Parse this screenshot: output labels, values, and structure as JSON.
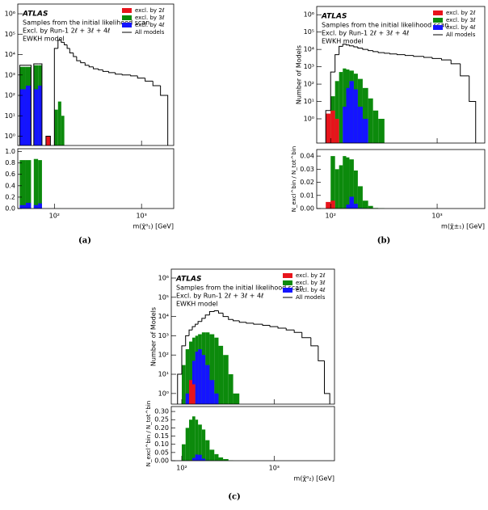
{
  "chart_data": [
    {
      "type": "histogram",
      "caption": "(a)",
      "atlas": "ATLAS",
      "annotations": [
        "Samples from the initial likelihood scan",
        "Excl. by Run-1 2ℓ + 3ℓ + 4ℓ",
        "EWKH model"
      ],
      "xlabel": "m(χ̃⁰₁) [GeV]",
      "xlog": true,
      "ylog": true,
      "xlim": [
        38,
        2340
      ],
      "ylim": [
        0.35,
        3000000
      ],
      "xticks": [
        {
          "value": 100,
          "label": "10²"
        },
        {
          "value": 1000,
          "label": "10³"
        }
      ],
      "yticks": [
        {
          "value": 1,
          "label": "10⁰"
        },
        {
          "value": 10,
          "label": "10¹"
        },
        {
          "value": 100,
          "label": "10²"
        },
        {
          "value": 1000,
          "label": "10³"
        },
        {
          "value": 10000,
          "label": "10⁴"
        },
        {
          "value": 100000,
          "label": "10⁵"
        },
        {
          "value": 1000000,
          "label": "10⁶"
        }
      ],
      "bins": [
        40,
        47,
        54,
        58,
        65,
        72,
        80,
        90,
        100,
        110,
        120,
        130,
        140,
        150,
        165,
        180,
        200,
        225,
        250,
        280,
        320,
        360,
        420,
        500,
        600,
        750,
        900,
        1100,
        1350,
        1650,
        2000,
        2300
      ],
      "series": [
        {
          "name": "excl. by 2ℓ",
          "color": "#e8141b",
          "values": [
            null,
            null,
            null,
            null,
            null,
            null,
            1,
            null,
            null,
            null,
            null,
            null,
            null,
            null,
            null,
            null,
            null,
            null,
            null,
            null,
            null,
            null,
            null,
            null,
            null,
            null,
            null,
            null,
            null,
            null,
            null
          ]
        },
        {
          "name": "excl. by 3ℓ",
          "color": "#0c8a0c",
          "values": [
            2500,
            2500,
            null,
            3000,
            3000,
            null,
            null,
            null,
            20,
            50,
            10,
            null,
            null,
            null,
            null,
            null,
            null,
            null,
            null,
            null,
            null,
            null,
            null,
            null,
            null,
            null,
            null,
            null,
            null,
            null,
            null
          ]
        },
        {
          "name": "excl. by 4ℓ",
          "color": "#1414ff",
          "values": [
            200,
            300,
            null,
            200,
            300,
            null,
            null,
            null,
            null,
            null,
            null,
            null,
            null,
            null,
            null,
            null,
            null,
            null,
            null,
            null,
            null,
            null,
            null,
            null,
            null,
            null,
            null,
            null,
            null,
            null,
            null
          ]
        },
        {
          "name": "All models",
          "color": "#000000",
          "values": [
            3000,
            3000,
            null,
            3500,
            3500,
            null,
            1,
            null,
            20000,
            50000,
            40000,
            30000,
            20000,
            12000,
            8000,
            5000,
            4000,
            3000,
            2500,
            2000,
            1800,
            1500,
            1300,
            1100,
            1000,
            900,
            700,
            500,
            300,
            100,
            null
          ]
        }
      ],
      "ratio": {
        "ylim": [
          0,
          1.05
        ],
        "yticks": [
          {
            "value": 0,
            "label": "0.0"
          },
          {
            "value": 0.2,
            "label": "0.2"
          },
          {
            "value": 0.4,
            "label": "0.4"
          },
          {
            "value": 0.6,
            "label": "0.6"
          },
          {
            "value": 0.8,
            "label": "0.8"
          },
          {
            "value": 1,
            "label": "1.0"
          }
        ],
        "series": [
          {
            "color": "#0c8a0c",
            "values": [
              0.85,
              0.85,
              null,
              0.87,
              0.85,
              null,
              null,
              null,
              0.001,
              0.001,
              0.0003,
              null,
              null,
              null,
              null,
              null,
              null,
              null,
              null,
              null,
              null,
              null,
              null,
              null,
              null,
              null,
              null,
              null,
              null,
              null,
              null
            ]
          },
          {
            "color": "#1414ff",
            "values": [
              0.06,
              0.1,
              null,
              0.06,
              0.09,
              null,
              null,
              null,
              null,
              null,
              null,
              null,
              null,
              null,
              null,
              null,
              null,
              null,
              null,
              null,
              null,
              null,
              null,
              null,
              null,
              null,
              null,
              null,
              null,
              null,
              null
            ]
          }
        ]
      }
    },
    {
      "type": "histogram",
      "caption": "(b)",
      "atlas": "ATLAS",
      "annotations": [
        "Samples from the initial likelihood scan",
        "Excl. by Run-1 2ℓ + 3ℓ + 4ℓ",
        "EWKH model"
      ],
      "ylabel": "Number of Models",
      "xlabel": "m(χ̃±₁) [GeV]",
      "xlog": true,
      "ylog": true,
      "xlim": [
        74,
        2800
      ],
      "ylim": [
        0.04,
        3000000
      ],
      "xticks": [
        {
          "value": 100,
          "label": "10²"
        },
        {
          "value": 1000,
          "label": "10³"
        }
      ],
      "yticks": [
        {
          "value": 1,
          "label": "10⁰"
        },
        {
          "value": 10,
          "label": "10¹"
        },
        {
          "value": 100,
          "label": "10²"
        },
        {
          "value": 1000,
          "label": "10³"
        },
        {
          "value": 10000,
          "label": "10⁴"
        },
        {
          "value": 100000,
          "label": "10⁵"
        },
        {
          "value": 1000000,
          "label": "10⁶"
        }
      ],
      "bins": [
        80,
        90,
        100,
        110,
        120,
        130,
        140,
        150,
        165,
        180,
        200,
        225,
        250,
        280,
        320,
        360,
        420,
        500,
        600,
        750,
        900,
        1100,
        1350,
        1650,
        2000,
        2300
      ],
      "series": [
        {
          "name": "excl. by 2ℓ",
          "color": "#e8141b",
          "values": [
            null,
            2,
            3,
            1,
            null,
            null,
            null,
            null,
            null,
            null,
            null,
            null,
            null,
            null,
            null,
            null,
            null,
            null,
            null,
            null,
            null,
            null,
            null,
            null,
            null
          ]
        },
        {
          "name": "excl. by 3ℓ",
          "color": "#0c8a0c",
          "values": [
            null,
            null,
            20,
            150,
            500,
            800,
            700,
            600,
            400,
            200,
            60,
            15,
            3,
            1,
            null,
            null,
            null,
            null,
            null,
            null,
            null,
            null,
            null,
            null,
            null
          ]
        },
        {
          "name": "excl. by 4ℓ",
          "color": "#1414ff",
          "values": [
            null,
            null,
            null,
            null,
            null,
            5,
            60,
            150,
            50,
            5,
            1,
            null,
            null,
            null,
            null,
            null,
            null,
            null,
            null,
            null,
            null,
            null,
            null,
            null,
            null
          ]
        },
        {
          "name": "All models",
          "color": "#000000",
          "values": [
            null,
            3,
            500,
            5000,
            15000,
            20000,
            18000,
            16000,
            14000,
            12000,
            10000,
            8500,
            7500,
            6500,
            6000,
            5500,
            5000,
            4500,
            4000,
            3500,
            3000,
            2500,
            1500,
            300,
            10
          ]
        }
      ],
      "ratio": {
        "ylabel": "N_excl^bin / N_tot^bin",
        "ylim": [
          0,
          0.045
        ],
        "yticks": [
          {
            "value": 0,
            "label": "0.00"
          },
          {
            "value": 0.01,
            "label": "0.01"
          },
          {
            "value": 0.02,
            "label": "0.02"
          },
          {
            "value": 0.03,
            "label": "0.03"
          },
          {
            "value": 0.04,
            "label": "0.04"
          }
        ],
        "series": [
          {
            "color": "#0c8a0c",
            "values": [
              null,
              null,
              0.04,
              0.03,
              0.033,
              0.04,
              0.039,
              0.0375,
              0.029,
              0.017,
              0.006,
              0.002,
              0.0004,
              0.0002,
              null,
              null,
              null,
              null,
              null,
              null,
              null,
              null,
              null,
              null,
              null
            ]
          },
          {
            "color": "#1414ff",
            "values": [
              null,
              null,
              null,
              null,
              null,
              0.0003,
              0.003,
              0.009,
              0.0036,
              0.0004,
              0.0001,
              null,
              null,
              null,
              null,
              null,
              null,
              null,
              null,
              null,
              null,
              null,
              null,
              null,
              null
            ]
          },
          {
            "color": "#e8141b",
            "values": [
              null,
              0.005,
              0.006,
              0.0002,
              null,
              null,
              null,
              null,
              null,
              null,
              null,
              null,
              null,
              null,
              null,
              null,
              null,
              null,
              null,
              null,
              null,
              null,
              null,
              null,
              null
            ]
          }
        ]
      }
    },
    {
      "type": "histogram",
      "caption": "(c)",
      "atlas": "ATLAS",
      "annotations": [
        "Samples from the initial likelihood scan",
        "Excl. by Run-1 2ℓ + 3ℓ + 4ℓ",
        "EWKH model"
      ],
      "ylabel": "Number of Models",
      "xlabel": "m(χ̃⁰₂) [GeV]",
      "xlog": true,
      "ylog": true,
      "xlim": [
        77,
        4500
      ],
      "ylim": [
        0.28,
        2900000
      ],
      "xticks": [
        {
          "value": 100,
          "label": "10²"
        },
        {
          "value": 1000,
          "label": "10³"
        }
      ],
      "yticks": [
        {
          "value": 1,
          "label": "10⁰"
        },
        {
          "value": 10,
          "label": "10¹"
        },
        {
          "value": 100,
          "label": "10²"
        },
        {
          "value": 1000,
          "label": "10³"
        },
        {
          "value": 10000,
          "label": "10⁴"
        },
        {
          "value": 100000,
          "label": "10⁵"
        },
        {
          "value": 1000000,
          "label": "10⁶"
        }
      ],
      "bins": [
        80,
        90,
        100,
        110,
        120,
        130,
        140,
        150,
        165,
        180,
        200,
        225,
        250,
        280,
        320,
        360,
        420,
        500,
        600,
        750,
        900,
        1100,
        1350,
        1650,
        2000,
        2500,
        3000,
        3500,
        4000
      ],
      "series": [
        {
          "name": "excl. by 2ℓ",
          "color": "#e8141b",
          "values": [
            null,
            null,
            null,
            null,
            5,
            3,
            null,
            null,
            null,
            null,
            null,
            null,
            null,
            null,
            null,
            null,
            null,
            null,
            null,
            null,
            null,
            null,
            null,
            null,
            null,
            null,
            null,
            null
          ]
        },
        {
          "name": "excl. by 3ℓ",
          "color": "#0c8a0c",
          "values": [
            null,
            null,
            30,
            200,
            500,
            800,
            1000,
            1200,
            1500,
            1500,
            1200,
            800,
            300,
            100,
            10,
            1,
            null,
            null,
            null,
            null,
            null,
            null,
            null,
            null,
            null,
            null,
            null,
            null
          ]
        },
        {
          "name": "excl. by 4ℓ",
          "color": "#1414ff",
          "values": [
            null,
            null,
            null,
            1,
            5,
            50,
            150,
            200,
            100,
            30,
            5,
            1,
            null,
            null,
            null,
            null,
            null,
            null,
            null,
            null,
            null,
            null,
            null,
            null,
            null,
            null,
            null,
            null
          ]
        },
        {
          "name": "All models",
          "color": "#000000",
          "values": [
            null,
            10,
            300,
            1000,
            2000,
            3000,
            4000,
            5500,
            8000,
            12000,
            18000,
            20000,
            15000,
            10000,
            7000,
            6000,
            5000,
            4500,
            4000,
            3500,
            3000,
            2500,
            2000,
            1500,
            800,
            300,
            50,
            1
          ]
        }
      ],
      "ratio": {
        "ylabel": "N_excl^bin / N_tot^bin",
        "ylim": [
          0,
          0.33
        ],
        "yticks": [
          {
            "value": 0,
            "label": "0.00"
          },
          {
            "value": 0.05,
            "label": "0.05"
          },
          {
            "value": 0.1,
            "label": "0.10"
          },
          {
            "value": 0.15,
            "label": "0.15"
          },
          {
            "value": 0.2,
            "label": "0.20"
          },
          {
            "value": 0.25,
            "label": "0.25"
          },
          {
            "value": 0.3,
            "label": "0.30"
          }
        ],
        "series": [
          {
            "color": "#0c8a0c",
            "values": [
              null,
              null,
              0.1,
              0.2,
              0.25,
              0.27,
              0.25,
              0.22,
              0.19,
              0.125,
              0.067,
              0.04,
              0.02,
              0.01,
              0.0014,
              0.0002,
              null,
              null,
              null,
              null,
              null,
              null,
              null,
              null,
              null,
              null,
              null,
              null
            ]
          },
          {
            "color": "#1414ff",
            "values": [
              null,
              null,
              null,
              0.001,
              0.0025,
              0.017,
              0.0375,
              0.036,
              0.0125,
              0.0025,
              0.0003,
              0.0001,
              null,
              null,
              null,
              null,
              null,
              null,
              null,
              null,
              null,
              null,
              null,
              null,
              null,
              null,
              null,
              null
            ]
          },
          {
            "color": "#e8141b",
            "values": [
              null,
              null,
              null,
              null,
              0.0025,
              0.001,
              null,
              null,
              null,
              null,
              null,
              null,
              null,
              null,
              null,
              null,
              null,
              null,
              null,
              null,
              null,
              null,
              null,
              null,
              null,
              null,
              null,
              null
            ]
          }
        ]
      }
    }
  ]
}
